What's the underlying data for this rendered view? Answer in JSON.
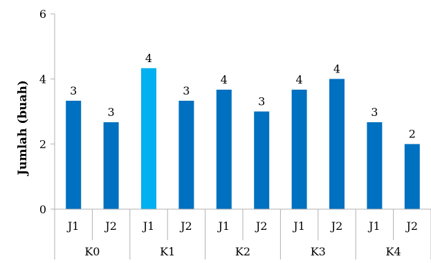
{
  "chart_data": {
    "type": "bar",
    "title": "",
    "xlabel": "",
    "ylabel": "Jumlah (buah)",
    "ylim": [
      0,
      6
    ],
    "yticks": [
      0,
      2,
      4,
      6
    ],
    "grid": false,
    "groups": [
      {
        "label": "K0",
        "bars": [
          {
            "label": "J1",
            "value": 3.33,
            "data_label": "3",
            "color": "#0070C0"
          },
          {
            "label": "J2",
            "value": 2.67,
            "data_label": "3",
            "color": "#0070C0"
          }
        ]
      },
      {
        "label": "K1",
        "bars": [
          {
            "label": "J1",
            "value": 4.33,
            "data_label": "4",
            "color": "#00B0F0"
          },
          {
            "label": "J2",
            "value": 3.33,
            "data_label": "3",
            "color": "#0070C0"
          }
        ]
      },
      {
        "label": "K2",
        "bars": [
          {
            "label": "J1",
            "value": 3.67,
            "data_label": "4",
            "color": "#0070C0"
          },
          {
            "label": "J2",
            "value": 3.0,
            "data_label": "3",
            "color": "#0070C0"
          }
        ]
      },
      {
        "label": "K3",
        "bars": [
          {
            "label": "J1",
            "value": 3.67,
            "data_label": "4",
            "color": "#0070C0"
          },
          {
            "label": "J2",
            "value": 4.0,
            "data_label": "4",
            "color": "#0070C0"
          }
        ]
      },
      {
        "label": "K4",
        "bars": [
          {
            "label": "J1",
            "value": 2.67,
            "data_label": "3",
            "color": "#0070C0"
          },
          {
            "label": "J2",
            "value": 2.0,
            "data_label": "2",
            "color": "#0070C0"
          }
        ]
      }
    ]
  }
}
